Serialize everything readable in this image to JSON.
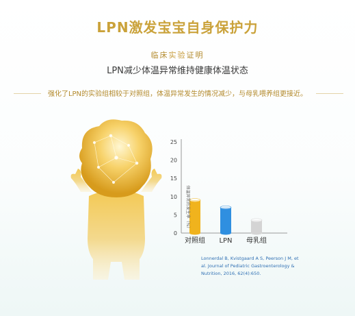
{
  "header": {
    "title": "LPN激发宝宝自身保护力",
    "clinical_prefix": "临床",
    "clinical_highlight": "实验",
    "clinical_suffix": "证明",
    "subtitle": "LPN减少体温异常维持健康体温状态",
    "description": "强化了LPN的实验组相较于对照组，体温异常发生的情况减少，与母乳喂养组更接近。"
  },
  "colors": {
    "gold": "#caa23a",
    "control_bar": "#f0b31d",
    "lpn_bar": "#2f8fe0",
    "breastmilk_bar": "#d4d4d4",
    "reference_text": "#2f6fb3"
  },
  "icons": [
    "child-silhouette-icon",
    "bar-cylinder-icon"
  ],
  "chart_data": {
    "type": "bar",
    "categories": [
      "对照组",
      "LPN",
      "母乳组"
    ],
    "values": [
      9,
      7,
      3.5
    ],
    "ylabel": "体温异常的发生率（%）",
    "ylim": [
      0,
      25
    ],
    "yticks": [
      "0",
      "5",
      "10",
      "15",
      "20",
      "25"
    ],
    "grid": false
  },
  "reference": {
    "text": "Lonnerdal B, Kvistgaard A S, Peerson J M, et al. Journal of Pediatric Gastroenterology & Nutrition, 2016, 62(4):650."
  }
}
